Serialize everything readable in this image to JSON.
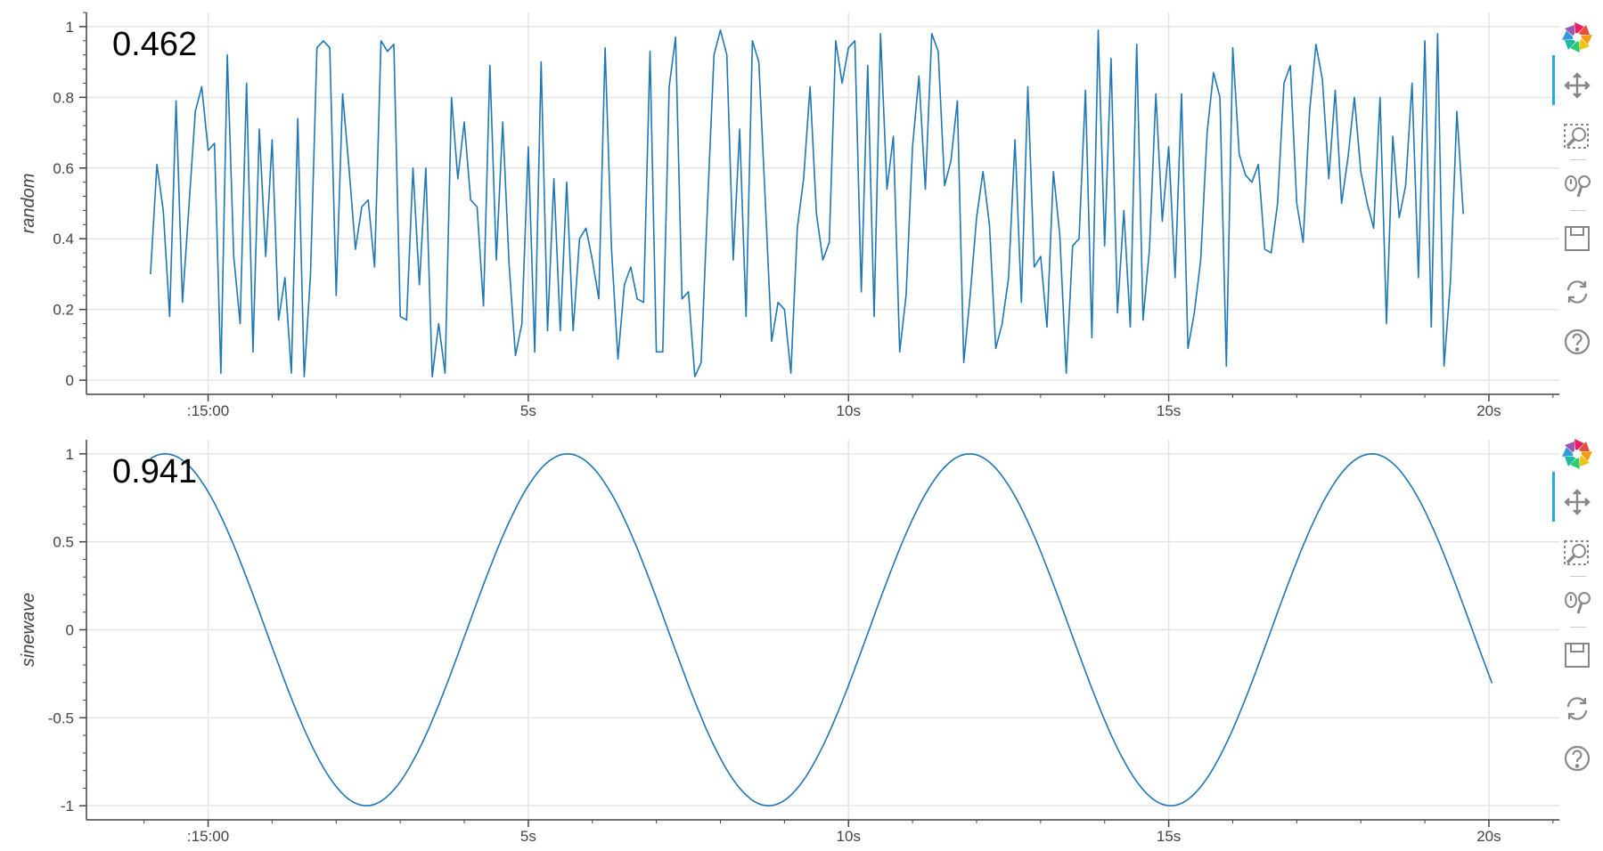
{
  "colors": {
    "line": "#1f77b4",
    "grid": "#e5e5e5",
    "axis": "#444444",
    "toolbar_active": "#26aae1"
  },
  "toolbar_icons": [
    "bokeh-logo-icon",
    "pan-icon",
    "box-zoom-icon",
    "wheel-zoom-icon",
    "save-icon",
    "reset-icon",
    "help-icon"
  ],
  "plots": [
    {
      "current_value": "0.462"
    },
    {
      "current_value": "0.941"
    }
  ],
  "chart_data": [
    {
      "type": "line",
      "title": "",
      "xlabel": "",
      "ylabel": "random",
      "x_unit": "seconds",
      "xlim": [
        -1.9,
        21.1
      ],
      "ylim": [
        -0.04,
        1.04
      ],
      "x_ticks": [
        0,
        5,
        10,
        15,
        20
      ],
      "x_tick_labels": [
        ":15:00",
        "5s",
        "10s",
        "15s",
        "20s"
      ],
      "y_ticks": [
        0,
        0.2,
        0.4,
        0.6,
        0.8,
        1
      ],
      "y_tick_labels": [
        "0",
        "0.2",
        "0.4",
        "0.6",
        "0.8",
        "1"
      ],
      "grid": true,
      "x_start": -0.9,
      "x_step": 0.1,
      "series": [
        {
          "values": [
            0.3,
            0.61,
            0.48,
            0.18,
            0.79,
            0.22,
            0.49,
            0.76,
            0.83,
            0.65,
            0.67,
            0.02,
            0.92,
            0.35,
            0.16,
            0.84,
            0.08,
            0.71,
            0.35,
            0.68,
            0.17,
            0.29,
            0.02,
            0.74,
            0.01,
            0.3,
            0.94,
            0.96,
            0.94,
            0.24,
            0.81,
            0.6,
            0.37,
            0.49,
            0.51,
            0.32,
            0.96,
            0.93,
            0.95,
            0.18,
            0.17,
            0.6,
            0.27,
            0.6,
            0.01,
            0.16,
            0.02,
            0.8,
            0.57,
            0.73,
            0.51,
            0.49,
            0.21,
            0.89,
            0.34,
            0.73,
            0.33,
            0.07,
            0.16,
            0.66,
            0.08,
            0.9,
            0.14,
            0.57,
            0.14,
            0.56,
            0.14,
            0.4,
            0.43,
            0.34,
            0.23,
            0.94,
            0.37,
            0.06,
            0.27,
            0.32,
            0.23,
            0.22,
            0.93,
            0.08,
            0.08,
            0.83,
            0.97,
            0.23,
            0.25,
            0.01,
            0.05,
            0.5,
            0.92,
            0.99,
            0.92,
            0.34,
            0.71,
            0.18,
            0.96,
            0.9,
            0.51,
            0.11,
            0.22,
            0.2,
            0.02,
            0.43,
            0.57,
            0.83,
            0.47,
            0.34,
            0.39,
            0.96,
            0.84,
            0.94,
            0.96,
            0.25,
            0.89,
            0.18,
            0.98,
            0.54,
            0.69,
            0.08,
            0.24,
            0.66,
            0.86,
            0.54,
            0.98,
            0.93,
            0.55,
            0.62,
            0.79,
            0.05,
            0.24,
            0.46,
            0.59,
            0.44,
            0.09,
            0.16,
            0.29,
            0.68,
            0.22,
            0.83,
            0.32,
            0.35,
            0.15,
            0.59,
            0.41,
            0.02,
            0.38,
            0.4,
            0.82,
            0.12,
            0.99,
            0.38,
            0.91,
            0.19,
            0.48,
            0.15,
            0.95,
            0.17,
            0.37,
            0.81,
            0.45,
            0.66,
            0.29,
            0.81,
            0.09,
            0.19,
            0.34,
            0.7,
            0.87,
            0.8,
            0.04,
            0.94,
            0.64,
            0.58,
            0.56,
            0.61,
            0.37,
            0.36,
            0.5,
            0.84,
            0.89,
            0.5,
            0.39,
            0.76,
            0.95,
            0.85,
            0.57,
            0.82,
            0.5,
            0.63,
            0.8,
            0.59,
            0.5,
            0.43,
            0.8,
            0.16,
            0.69,
            0.46,
            0.55,
            0.84,
            0.29,
            0.96,
            0.15,
            0.98,
            0.04,
            0.28,
            0.76,
            0.47
          ]
        }
      ]
    },
    {
      "type": "line",
      "title": "",
      "xlabel": "",
      "ylabel": "sinewave",
      "x_unit": "seconds",
      "xlim": [
        -1.9,
        21.1
      ],
      "ylim": [
        -1.08,
        1.08
      ],
      "x_ticks": [
        0,
        5,
        10,
        15,
        20
      ],
      "x_tick_labels": [
        ":15:00",
        "5s",
        "10s",
        "15s",
        "20s"
      ],
      "y_ticks": [
        -1,
        -0.5,
        0,
        0.5,
        1
      ],
      "y_tick_labels": [
        "-1",
        "-0.5",
        "0",
        "0.5",
        "1"
      ],
      "grid": true,
      "function": "sin",
      "x_start": -0.9,
      "x_end": 20.05,
      "amplitude": 1,
      "period": 6.28,
      "phase": 2.24,
      "samples": 420
    }
  ]
}
